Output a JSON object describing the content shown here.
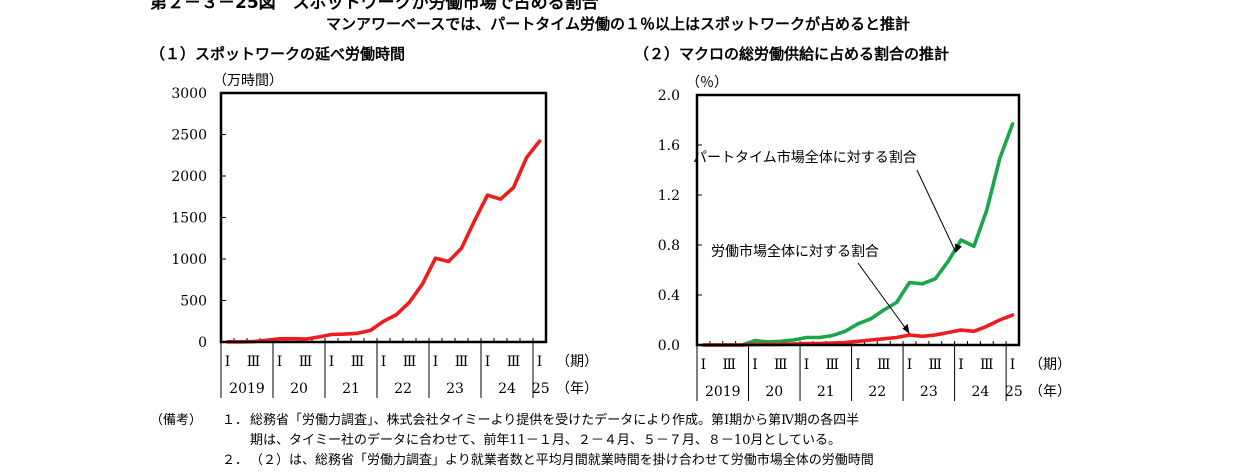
{
  "figure": {
    "title": "第２－３－25図　スポットワークが労働市場で占める割合",
    "subtitle": "マンアワーベースでは、パートタイム労働の１％以上はスポットワークが占めると推計"
  },
  "chart_data": [
    {
      "type": "line",
      "title": "（１）スポットワークの延べ労働時間",
      "ylabel": "（万時間）",
      "ylim": [
        0,
        3000
      ],
      "yticks": [
        "0",
        "500",
        "1000",
        "1500",
        "2000",
        "2500",
        "3000"
      ],
      "x_quarter_labels": [
        "Ⅰ",
        "Ⅲ",
        "Ⅰ",
        "Ⅲ",
        "Ⅰ",
        "Ⅲ",
        "Ⅰ",
        "Ⅲ",
        "Ⅰ",
        "Ⅲ",
        "Ⅰ",
        "Ⅲ",
        "Ⅰ"
      ],
      "x_year_labels": [
        "2019",
        "20",
        "21",
        "22",
        "23",
        "24",
        "25"
      ],
      "x_period_unit": "（期）",
      "x_year_unit": "（年）",
      "x": [
        "2019Q1",
        "2019Q2",
        "2019Q3",
        "2019Q4",
        "2020Q1",
        "2020Q2",
        "2020Q3",
        "2020Q4",
        "2021Q1",
        "2021Q2",
        "2021Q3",
        "2021Q4",
        "2022Q1",
        "2022Q2",
        "2022Q3",
        "2022Q4",
        "2023Q1",
        "2023Q2",
        "2023Q3",
        "2023Q4",
        "2024Q1",
        "2024Q2",
        "2024Q3",
        "2024Q4",
        "2025Q1"
      ],
      "series": [
        {
          "color": "#ee1c1c",
          "values": [
            2,
            3,
            5,
            20,
            38,
            40,
            35,
            60,
            90,
            95,
            105,
            140,
            250,
            330,
            480,
            700,
            1010,
            970,
            1130,
            1460,
            1770,
            1720,
            1860,
            2220,
            2420
          ]
        }
      ]
    },
    {
      "type": "line",
      "title": "（２）マクロの総労働供給に占める割合の推計",
      "ylabel": "（％）",
      "ylim": [
        0,
        2.0
      ],
      "yticks": [
        "0.0",
        "0.4",
        "0.8",
        "1.2",
        "1.6",
        "2.0"
      ],
      "x_quarter_labels": [
        "Ⅰ",
        "Ⅲ",
        "Ⅰ",
        "Ⅲ",
        "Ⅰ",
        "Ⅲ",
        "Ⅰ",
        "Ⅲ",
        "Ⅰ",
        "Ⅲ",
        "Ⅰ",
        "Ⅲ",
        "Ⅰ"
      ],
      "x_year_labels": [
        "2019",
        "20",
        "21",
        "22",
        "23",
        "24",
        "25"
      ],
      "x_period_unit": "（期）",
      "x_year_unit": "（年）",
      "x": [
        "2019Q1",
        "2019Q2",
        "2019Q3",
        "2019Q4",
        "2020Q1",
        "2020Q2",
        "2020Q3",
        "2020Q4",
        "2021Q1",
        "2021Q2",
        "2021Q3",
        "2021Q4",
        "2022Q1",
        "2022Q2",
        "2022Q3",
        "2022Q4",
        "2023Q1",
        "2023Q2",
        "2023Q3",
        "2023Q4",
        "2024Q1",
        "2024Q2",
        "2024Q3",
        "2024Q4",
        "2025Q1"
      ],
      "series": [
        {
          "color": "#1aa64a",
          "values": [
            0.0,
            0.0,
            0.0,
            0.0,
            0.035,
            0.025,
            0.03,
            0.04,
            0.06,
            0.06,
            0.075,
            0.11,
            0.17,
            0.21,
            0.28,
            0.34,
            0.5,
            0.49,
            0.53,
            0.67,
            0.84,
            0.79,
            1.08,
            1.49,
            1.77
          ]
        },
        {
          "color": "#ee1c1c",
          "values": [
            0.0,
            0.0,
            0.0,
            0.0,
            0.005,
            0.005,
            0.005,
            0.008,
            0.012,
            0.012,
            0.015,
            0.02,
            0.03,
            0.04,
            0.05,
            0.06,
            0.08,
            0.07,
            0.08,
            0.1,
            0.12,
            0.11,
            0.15,
            0.2,
            0.24
          ]
        }
      ],
      "annotations": [
        {
          "text": "パートタイム市場全体に対する割合"
        },
        {
          "text": "労働市場全体に対する割合"
        }
      ]
    }
  ],
  "notes": {
    "label": "（備考）",
    "items": [
      {
        "num": "１．",
        "text": "総務省「労働力調査」、株式会社タイミーより提供を受けたデータにより作成。第Ⅰ期から第Ⅳ期の各四半"
      },
      {
        "num": "",
        "text": "期は、タイミー社のデータに合わせて、前年11－１月、２－４月、５－７月、８－10月としている。"
      },
      {
        "num": "２．",
        "text": "（２）は、総務省「労働力調査」より就業者数と平均月間就業時間を掛け合わせて労働市場全体の労働時間"
      }
    ]
  }
}
